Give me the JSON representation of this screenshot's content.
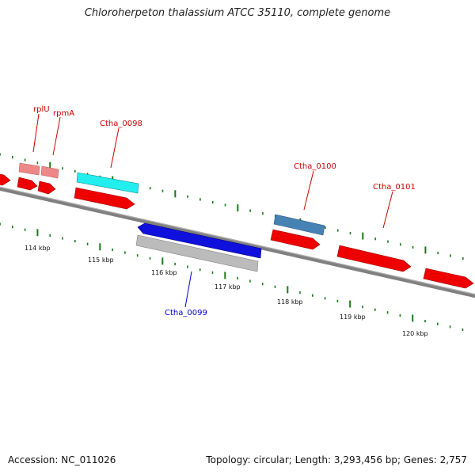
{
  "title": "Chloroherpeton thalassium ATCC 35110, complete genome",
  "footer": {
    "accession": "Accession: NC_011026",
    "summary": "Topology: circular; Length: 3,293,456 bp; Genes: 2,757"
  },
  "colors": {
    "backbone": "#808080",
    "tick": "#1a7a1a",
    "forward_cds": "#ee0000",
    "reverse_cds": "#1010dd",
    "rRNA_like": "#ee8888",
    "label_red": "#cc0000",
    "label_blue": "#0000cc",
    "cyan_feature": "#22eeee",
    "steelblue_feature": "#4682b4",
    "gray_feature": "#bbbbbb"
  },
  "scale_labels": [
    "114 kbp",
    "115 kbp",
    "116 kbp",
    "117 kbp",
    "118 kbp",
    "119 kbp",
    "120 kbp"
  ],
  "gene_labels": [
    {
      "name": "rplU",
      "color": "red"
    },
    {
      "name": "rpmA",
      "color": "red"
    },
    {
      "name": "Ctha_0098",
      "color": "red"
    },
    {
      "name": "Ctha_0100",
      "color": "red"
    },
    {
      "name": "Ctha_0101",
      "color": "red"
    },
    {
      "name": "Ctha_0099",
      "color": "blue"
    }
  ]
}
